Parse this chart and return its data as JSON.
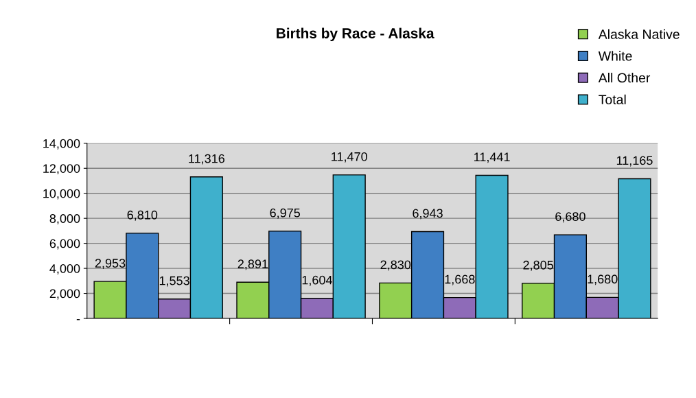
{
  "chart_data": {
    "type": "bar",
    "title": "Births by Race - Alaska",
    "categories": [
      null,
      null,
      null,
      null
    ],
    "series": [
      {
        "name": "Alaska Native",
        "color": "#92d050",
        "values": [
          2953,
          2891,
          2830,
          2805
        ],
        "value_labels": [
          "2,953",
          "2,891",
          "2,830",
          "2,805"
        ]
      },
      {
        "name": "White",
        "color": "#3f7fc4",
        "values": [
          6810,
          6975,
          6943,
          6680
        ],
        "value_labels": [
          "6,810",
          "6,975",
          "6,943",
          "6,680"
        ]
      },
      {
        "name": "All Other",
        "color": "#8e6bb8",
        "values": [
          1553,
          1604,
          1668,
          1680
        ],
        "value_labels": [
          "1,553",
          "1,604",
          "1,668",
          "1,680"
        ]
      },
      {
        "name": "Total",
        "color": "#3fb0cc",
        "values": [
          11316,
          11470,
          11441,
          11165
        ],
        "value_labels": [
          "11,316",
          "11,470",
          "11,441",
          "11,165"
        ]
      }
    ],
    "ylim": [
      0,
      14000
    ],
    "yticks": [
      {
        "value": 0,
        "label": "-"
      },
      {
        "value": 2000,
        "label": "2,000"
      },
      {
        "value": 4000,
        "label": "4,000"
      },
      {
        "value": 6000,
        "label": "6,000"
      },
      {
        "value": 8000,
        "label": "8,000"
      },
      {
        "value": 10000,
        "label": "10,000"
      },
      {
        "value": 12000,
        "label": "12,000"
      },
      {
        "value": 14000,
        "label": "14,000"
      }
    ],
    "grid": "y",
    "legend": "top right"
  }
}
